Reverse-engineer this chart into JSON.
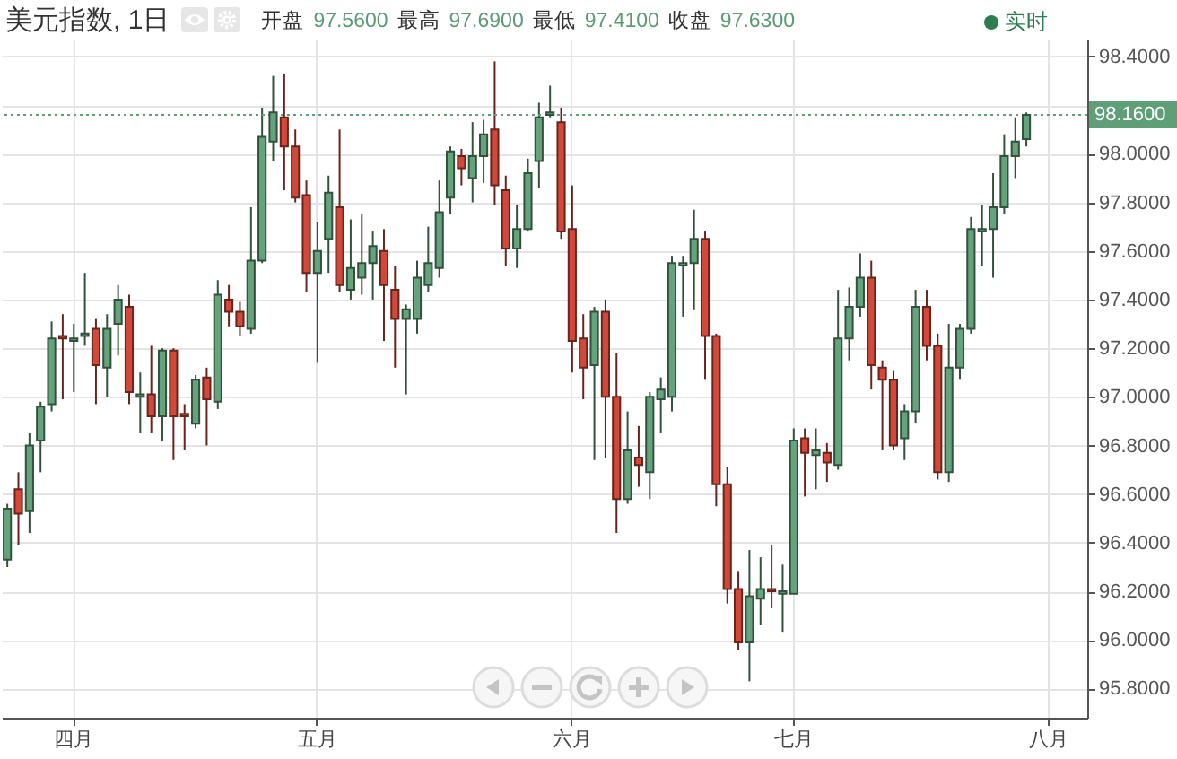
{
  "chart_data": {
    "type": "candlestick",
    "title": "美元指数, 1日",
    "subtitle": "开盘 97.5600 最高 97.6900 最低 97.4100 收盘 97.6300",
    "annotations": [
      "实时"
    ],
    "categories": [
      null,
      null,
      null,
      null,
      null,
      null,
      "四月",
      null,
      null,
      null,
      null,
      null,
      null,
      null,
      null,
      null,
      null,
      null,
      null,
      null,
      null,
      null,
      null,
      null,
      null,
      null,
      null,
      null,
      "五月",
      null,
      null,
      null,
      null,
      null,
      null,
      null,
      null,
      null,
      null,
      null,
      null,
      null,
      null,
      null,
      null,
      null,
      null,
      null,
      null,
      null,
      null,
      "六月",
      null,
      null,
      null,
      null,
      null,
      null,
      null,
      null,
      null,
      null,
      null,
      null,
      null,
      null,
      null,
      null,
      null,
      null,
      null,
      "七月",
      null,
      null,
      null,
      null,
      null,
      null,
      null,
      null,
      null,
      null,
      null,
      null,
      null,
      null,
      null,
      null,
      null,
      null,
      null,
      null,
      null,
      null,
      "八月",
      null,
      null,
      null
    ],
    "ohlc": [
      [
        96.33,
        96.56,
        96.3,
        96.54
      ],
      [
        96.62,
        96.69,
        96.39,
        96.52
      ],
      [
        96.53,
        96.85,
        96.44,
        96.8
      ],
      [
        96.82,
        96.98,
        96.69,
        96.96
      ],
      [
        96.97,
        97.31,
        96.94,
        97.24
      ],
      [
        97.25,
        97.34,
        96.99,
        97.24
      ],
      [
        97.23,
        97.3,
        97.02,
        97.24
      ],
      [
        97.25,
        97.51,
        97.21,
        97.26
      ],
      [
        97.28,
        97.32,
        96.97,
        97.13
      ],
      [
        97.12,
        97.34,
        97.0,
        97.28
      ],
      [
        97.3,
        97.46,
        97.17,
        97.4
      ],
      [
        97.37,
        97.42,
        96.97,
        97.02
      ],
      [
        97.0,
        97.1,
        96.85,
        97.01
      ],
      [
        97.01,
        97.21,
        96.85,
        96.92
      ],
      [
        96.92,
        97.2,
        96.82,
        97.19
      ],
      [
        97.19,
        97.2,
        96.74,
        96.92
      ],
      [
        96.93,
        96.97,
        96.78,
        96.92
      ],
      [
        96.89,
        97.09,
        96.87,
        97.07
      ],
      [
        97.08,
        97.12,
        96.8,
        96.99
      ],
      [
        96.98,
        97.48,
        96.95,
        97.42
      ],
      [
        97.4,
        97.46,
        97.29,
        97.35
      ],
      [
        97.35,
        97.39,
        97.25,
        97.29
      ],
      [
        97.28,
        97.78,
        97.26,
        97.56
      ],
      [
        97.56,
        98.19,
        97.55,
        98.07
      ],
      [
        98.05,
        98.32,
        97.97,
        98.17
      ],
      [
        98.15,
        98.33,
        97.85,
        98.03
      ],
      [
        98.03,
        98.1,
        97.8,
        97.82
      ],
      [
        97.83,
        97.89,
        97.43,
        97.51
      ],
      [
        97.51,
        97.72,
        97.14,
        97.6
      ],
      [
        97.65,
        97.91,
        97.51,
        97.84
      ],
      [
        97.78,
        98.1,
        97.43,
        97.46
      ],
      [
        97.44,
        97.73,
        97.4,
        97.53
      ],
      [
        97.49,
        97.75,
        97.42,
        97.55
      ],
      [
        97.55,
        97.68,
        97.4,
        97.62
      ],
      [
        97.6,
        97.69,
        97.23,
        97.46
      ],
      [
        97.44,
        97.54,
        97.12,
        97.32
      ],
      [
        97.32,
        97.38,
        97.01,
        97.36
      ],
      [
        97.32,
        97.56,
        97.26,
        97.49
      ],
      [
        97.46,
        97.7,
        97.43,
        97.55
      ],
      [
        97.53,
        97.89,
        97.49,
        97.76
      ],
      [
        97.82,
        98.03,
        97.75,
        98.01
      ],
      [
        97.99,
        98.02,
        97.87,
        97.94
      ],
      [
        97.9,
        98.13,
        97.8,
        97.99
      ],
      [
        97.99,
        98.14,
        97.88,
        98.08
      ],
      [
        98.1,
        98.38,
        97.79,
        97.87
      ],
      [
        97.85,
        97.91,
        97.54,
        97.61
      ],
      [
        97.61,
        97.79,
        97.53,
        97.69
      ],
      [
        97.69,
        97.98,
        97.68,
        97.92
      ],
      [
        97.97,
        98.21,
        97.86,
        98.15
      ],
      [
        98.16,
        98.28,
        98.15,
        98.17
      ],
      [
        98.13,
        98.19,
        97.65,
        97.68
      ],
      [
        97.69,
        97.87,
        97.1,
        97.23
      ],
      [
        97.24,
        97.34,
        96.99,
        97.12
      ],
      [
        97.13,
        97.37,
        96.74,
        97.35
      ],
      [
        97.35,
        97.4,
        96.75,
        97.0
      ],
      [
        97.0,
        97.18,
        96.44,
        96.58
      ],
      [
        96.58,
        96.94,
        96.56,
        96.78
      ],
      [
        96.75,
        96.88,
        96.63,
        96.72
      ],
      [
        96.69,
        97.02,
        96.58,
        97.0
      ],
      [
        96.99,
        97.08,
        96.85,
        97.03
      ],
      [
        97.0,
        97.58,
        96.94,
        97.55
      ],
      [
        97.54,
        97.58,
        97.33,
        97.55
      ],
      [
        97.55,
        97.77,
        97.36,
        97.65
      ],
      [
        97.65,
        97.68,
        97.07,
        97.25
      ],
      [
        97.25,
        97.26,
        96.55,
        96.64
      ],
      [
        96.64,
        96.71,
        96.15,
        96.21
      ],
      [
        96.21,
        96.28,
        95.96,
        95.99
      ],
      [
        95.99,
        96.37,
        95.83,
        96.18
      ],
      [
        96.17,
        96.34,
        96.06,
        96.21
      ],
      [
        96.21,
        96.39,
        96.13,
        96.2
      ],
      [
        96.19,
        96.31,
        96.03,
        96.2
      ],
      [
        96.19,
        96.87,
        96.19,
        96.82
      ],
      [
        96.83,
        96.87,
        96.59,
        96.77
      ],
      [
        96.76,
        96.87,
        96.62,
        96.78
      ],
      [
        96.77,
        96.81,
        96.65,
        96.73
      ],
      [
        96.72,
        97.44,
        96.7,
        97.24
      ],
      [
        97.24,
        97.45,
        97.15,
        97.37
      ],
      [
        97.37,
        97.59,
        97.33,
        97.49
      ],
      [
        97.49,
        97.56,
        97.03,
        97.13
      ],
      [
        97.12,
        97.15,
        96.78,
        97.07
      ],
      [
        97.07,
        97.11,
        96.78,
        96.8
      ],
      [
        96.83,
        96.97,
        96.74,
        96.94
      ],
      [
        96.94,
        97.44,
        96.89,
        97.37
      ],
      [
        97.37,
        97.44,
        97.15,
        97.21
      ],
      [
        97.21,
        97.26,
        96.66,
        96.69
      ],
      [
        96.69,
        97.3,
        96.65,
        97.12
      ],
      [
        97.12,
        97.3,
        97.07,
        97.28
      ],
      [
        97.28,
        97.74,
        97.26,
        97.69
      ],
      [
        97.68,
        97.79,
        97.54,
        97.69
      ],
      [
        97.69,
        97.92,
        97.49,
        97.78
      ],
      [
        97.78,
        98.08,
        97.75,
        97.99
      ],
      [
        97.99,
        98.15,
        97.9,
        98.05
      ],
      [
        98.06,
        98.17,
        98.03,
        98.16
      ],
      null,
      null,
      null,
      null,
      null
    ],
    "colors": [
      "#64a37b",
      "#d2493a",
      "#64a37b",
      "#64a37b",
      "#64a37b",
      "#d2493a",
      "#64a37b",
      "#64a37b",
      "#d2493a",
      "#64a37b",
      "#64a37b",
      "#d2493a",
      "#64a37b",
      "#d2493a",
      "#64a37b",
      "#d2493a",
      "#d2493a",
      "#64a37b",
      "#d2493a",
      "#64a37b",
      "#d2493a",
      "#d2493a",
      "#64a37b",
      "#64a37b",
      "#64a37b",
      "#d2493a",
      "#d2493a",
      "#d2493a",
      "#64a37b",
      "#64a37b",
      "#d2493a",
      "#64a37b",
      "#64a37b",
      "#64a37b",
      "#d2493a",
      "#d2493a",
      "#64a37b",
      "#64a37b",
      "#64a37b",
      "#64a37b",
      "#64a37b",
      "#d2493a",
      "#64a37b",
      "#64a37b",
      "#d2493a",
      "#d2493a",
      "#64a37b",
      "#64a37b",
      "#64a37b",
      "#64a37b",
      "#d2493a",
      "#d2493a",
      "#d2493a",
      "#64a37b",
      "#d2493a",
      "#d2493a",
      "#64a37b",
      "#d2493a",
      "#64a37b",
      "#64a37b",
      "#64a37b",
      "#64a37b",
      "#64a37b",
      "#d2493a",
      "#d2493a",
      "#d2493a",
      "#d2493a",
      "#64a37b",
      "#64a37b",
      "#d2493a",
      "#64a37b",
      "#64a37b",
      "#d2493a",
      "#64a37b",
      "#d2493a",
      "#64a37b",
      "#64a37b",
      "#64a37b",
      "#d2493a",
      "#d2493a",
      "#d2493a",
      "#64a37b",
      "#64a37b",
      "#d2493a",
      "#d2493a",
      "#64a37b",
      "#64a37b",
      "#64a37b",
      "#64a37b",
      "#64a37b",
      "#64a37b",
      "#64a37b",
      "#64a37b",
      null,
      null,
      null,
      null,
      null
    ],
    "ylim": [
      95.68,
      98.47
    ],
    "yticks": [
      {
        "value": 95.8,
        "label": "95.8000"
      },
      {
        "value": 96.0,
        "label": "96.0000"
      },
      {
        "value": 96.2,
        "label": "96.2000"
      },
      {
        "value": 96.4,
        "label": "96.4000"
      },
      {
        "value": 96.6,
        "label": "96.6000"
      },
      {
        "value": 96.8,
        "label": "96.8000"
      },
      {
        "value": 97.0,
        "label": "97.0000"
      },
      {
        "value": 97.2,
        "label": "97.2000"
      },
      {
        "value": 97.4,
        "label": "97.4000"
      },
      {
        "value": 97.6,
        "label": "97.6000"
      },
      {
        "value": 97.8,
        "label": "97.8000"
      },
      {
        "value": 98.0,
        "label": "98.0000"
      },
      {
        "value": 98.2,
        "label": null
      },
      {
        "value": 98.4,
        "label": "98.4000"
      }
    ],
    "grid": true,
    "ref_lines": [
      {
        "axis": "y",
        "value": 98.16,
        "label": "98.1600",
        "color": "#5f9f78",
        "line_style": "dotted"
      }
    ]
  }
}
